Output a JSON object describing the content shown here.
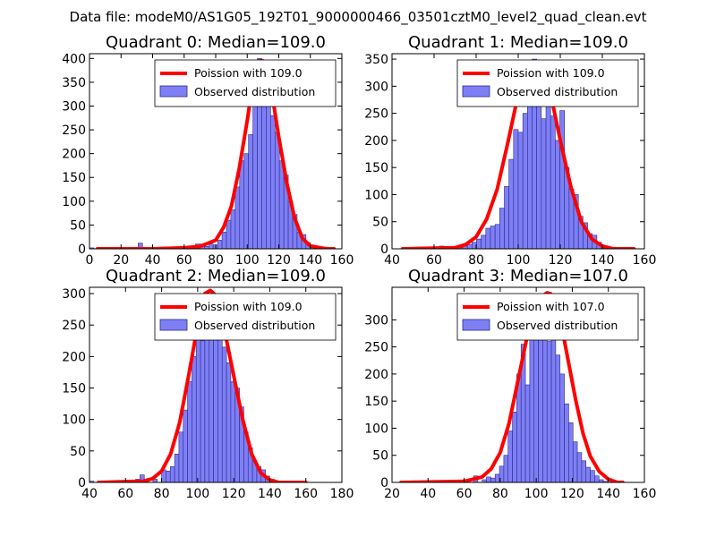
{
  "figure": {
    "title": "Data file: modeM0/AS1G05_192T01_9000000466_03501cztM0_level2_quad_clean.evt"
  },
  "colors": {
    "hist_fill": "#7f7ff5",
    "hist_edge": "#2a2a8f",
    "curve": "#ff0000",
    "frame": "#000000"
  },
  "chart_data": [
    {
      "type": "bar",
      "title": "Quadrant 0: Median=109.0",
      "xlim": [
        0,
        160
      ],
      "ylim": [
        0,
        410
      ],
      "xticks": [
        0,
        20,
        40,
        60,
        80,
        100,
        120,
        140,
        160
      ],
      "yticks": [
        0,
        50,
        100,
        150,
        200,
        250,
        300,
        350,
        400
      ],
      "legend": {
        "location": "upper-right",
        "entries": [
          "Poission with 109.0",
          "Observed distribution"
        ]
      },
      "series": [
        {
          "name": "Observed distribution",
          "type": "histogram",
          "bin_width": 2.8,
          "bin_starts": [
            0,
            30.8,
            61.6,
            64.4,
            67.2,
            70.0,
            72.8,
            75.6,
            78.4,
            81.2,
            84.0,
            86.8,
            89.6,
            92.4,
            95.2,
            98.0,
            100.8,
            103.6,
            106.4,
            109.2,
            112.0,
            114.8,
            117.6,
            120.4,
            123.2,
            126.0,
            128.8,
            131.6,
            134.4,
            137.2,
            140.0,
            142.8
          ],
          "counts": [
            2,
            12,
            5,
            3,
            10,
            10,
            5,
            10,
            8,
            18,
            35,
            60,
            82,
            130,
            185,
            200,
            240,
            305,
            400,
            345,
            315,
            280,
            245,
            185,
            155,
            100,
            72,
            35,
            30,
            13,
            5,
            2
          ]
        },
        {
          "name": "Poission with 109.0",
          "type": "line",
          "x": [
            5,
            40,
            60,
            70,
            80,
            85,
            90,
            95,
            100,
            104,
            108,
            110,
            112,
            116,
            120,
            125,
            130,
            135,
            140,
            150,
            155
          ],
          "y": [
            0,
            0,
            2,
            5,
            18,
            45,
            90,
            170,
            270,
            360,
            395,
            395,
            385,
            320,
            235,
            140,
            65,
            22,
            6,
            0,
            0
          ]
        }
      ]
    },
    {
      "type": "bar",
      "title": "Quadrant 1: Median=109.0",
      "xlim": [
        40,
        160
      ],
      "ylim": [
        0,
        360
      ],
      "xticks": [
        40,
        60,
        80,
        100,
        120,
        140,
        160
      ],
      "yticks": [
        0,
        50,
        100,
        150,
        200,
        250,
        300,
        350
      ],
      "legend": {
        "location": "upper-right",
        "entries": [
          "Poission with 109.0",
          "Observed distribution"
        ]
      },
      "series": [
        {
          "name": "Observed distribution",
          "type": "histogram",
          "bin_width": 2.2,
          "bin_starts": [
            45.0,
            62.6,
            67.0,
            71.4,
            73.6,
            75.8,
            78.0,
            80.2,
            82.4,
            84.6,
            86.8,
            89.0,
            91.2,
            93.4,
            95.6,
            97.8,
            100.0,
            102.2,
            104.4,
            106.6,
            108.8,
            111.0,
            113.2,
            115.4,
            117.6,
            119.8,
            122.0,
            124.2,
            126.4,
            128.6,
            130.8,
            133.0,
            135.2,
            137.4,
            139.6,
            141.8
          ],
          "counts": [
            2,
            5,
            3,
            2,
            5,
            8,
            12,
            18,
            25,
            38,
            42,
            45,
            75,
            115,
            165,
            220,
            215,
            250,
            270,
            350,
            305,
            240,
            320,
            245,
            200,
            255,
            150,
            110,
            100,
            60,
            48,
            28,
            25,
            12,
            5,
            2
          ]
        },
        {
          "name": "Poission with 109.0",
          "type": "line",
          "x": [
            45,
            70,
            75,
            80,
            85,
            90,
            95,
            100,
            104,
            108,
            110,
            112,
            116,
            120,
            125,
            130,
            135,
            140,
            145,
            155
          ],
          "y": [
            0,
            2,
            8,
            22,
            55,
            110,
            195,
            285,
            330,
            345,
            345,
            330,
            275,
            200,
            115,
            50,
            18,
            5,
            0,
            0
          ]
        }
      ]
    },
    {
      "type": "bar",
      "title": "Quadrant 2: Median=109.0",
      "xlim": [
        40,
        180
      ],
      "ylim": [
        0,
        310
      ],
      "xticks": [
        40,
        60,
        80,
        100,
        120,
        140,
        160,
        180
      ],
      "yticks": [
        0,
        50,
        100,
        150,
        200,
        250,
        300
      ],
      "legend": {
        "location": "upper-right",
        "entries": [
          "Poission with 109.0",
          "Observed distribution"
        ]
      },
      "series": [
        {
          "name": "Observed distribution",
          "type": "histogram",
          "bin_width": 2.4,
          "bin_starts": [
            40.0,
            65.6,
            68.0,
            70.4,
            75.2,
            80.0,
            82.4,
            84.8,
            87.2,
            89.6,
            92.0,
            94.4,
            96.8,
            99.2,
            101.6,
            104.0,
            106.4,
            108.8,
            111.2,
            113.6,
            116.0,
            118.4,
            120.8,
            123.2,
            125.6,
            128.0,
            130.4,
            132.8,
            135.2,
            137.6,
            140.0,
            142.4
          ],
          "counts": [
            2,
            5,
            12,
            3,
            5,
            20,
            18,
            25,
            45,
            80,
            115,
            160,
            200,
            240,
            225,
            290,
            260,
            300,
            240,
            215,
            190,
            160,
            150,
            120,
            80,
            55,
            35,
            25,
            20,
            10,
            5,
            2
          ]
        },
        {
          "name": "Poission with 109.0",
          "type": "line",
          "x": [
            45,
            70,
            75,
            80,
            85,
            90,
            95,
            100,
            104,
            107,
            109,
            111,
            115,
            120,
            125,
            130,
            135,
            140,
            145,
            160
          ],
          "y": [
            0,
            2,
            6,
            18,
            45,
            95,
            170,
            250,
            300,
            305,
            300,
            290,
            240,
            170,
            100,
            45,
            15,
            4,
            0,
            0
          ]
        }
      ]
    },
    {
      "type": "bar",
      "title": "Quadrant 3: Median=107.0",
      "xlim": [
        20,
        160
      ],
      "ylim": [
        0,
        360
      ],
      "xticks": [
        20,
        40,
        60,
        80,
        100,
        120,
        140,
        160
      ],
      "yticks": [
        0,
        50,
        100,
        150,
        200,
        250,
        300
      ],
      "legend": {
        "location": "upper-right",
        "entries": [
          "Poission with 107.0",
          "Observed distribution"
        ]
      },
      "series": [
        {
          "name": "Observed distribution",
          "type": "histogram",
          "bin_width": 2.4,
          "bin_starts": [
            25.0,
            60.4,
            65.2,
            70.0,
            72.4,
            74.8,
            77.2,
            79.6,
            82.0,
            84.4,
            86.8,
            89.2,
            91.6,
            94.0,
            96.4,
            98.8,
            101.2,
            103.6,
            106.0,
            108.4,
            110.8,
            113.2,
            115.6,
            118.0,
            120.4,
            122.8,
            125.2,
            127.6,
            130.0,
            132.4,
            134.8,
            137.2
          ],
          "counts": [
            2,
            5,
            12,
            5,
            10,
            8,
            15,
            30,
            50,
            95,
            130,
            200,
            255,
            180,
            315,
            265,
            320,
            335,
            260,
            310,
            235,
            200,
            145,
            110,
            75,
            55,
            40,
            28,
            22,
            12,
            5,
            2
          ]
        },
        {
          "name": "Poission with 107.0",
          "type": "line",
          "x": [
            25,
            60,
            70,
            75,
            80,
            85,
            90,
            95,
            100,
            104,
            106,
            108,
            110,
            114,
            118,
            122,
            126,
            130,
            135,
            140,
            145,
            148
          ],
          "y": [
            0,
            2,
            10,
            25,
            55,
            110,
            190,
            270,
            315,
            345,
            350,
            348,
            340,
            290,
            220,
            150,
            90,
            48,
            20,
            6,
            0,
            0
          ]
        }
      ]
    }
  ]
}
